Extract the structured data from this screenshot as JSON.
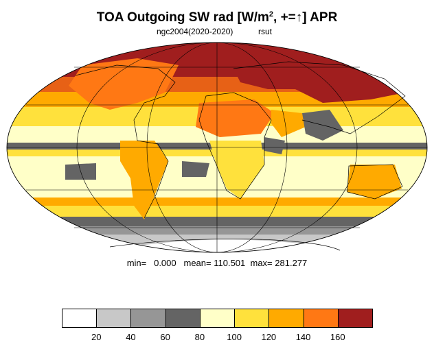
{
  "title": {
    "main": "TOA Outgoing SW rad [W/m",
    "sup": "2",
    "tail": ", +=↑] APR"
  },
  "subtitle": {
    "run": "ngc2004(2020-2020)",
    "variable": "rsut"
  },
  "stats": {
    "min_label": "min=",
    "min_value": "0.000",
    "mean_label": "mean=",
    "mean_value": "110.501",
    "max_label": "max=",
    "max_value": "281.277"
  },
  "colorbar": {
    "levels": [
      "20",
      "40",
      "60",
      "80",
      "100",
      "120",
      "140",
      "160"
    ],
    "colors": [
      "#ffffff",
      "#c8c8c8",
      "#969696",
      "#646464",
      "#ffffc8",
      "#ffe13c",
      "#ffaa00",
      "#ff7814",
      "#a01e1e"
    ]
  },
  "map": {
    "projection": "Mollweide",
    "coastline_color": "#000000",
    "gridline_color": "#000000",
    "colors": {
      "white": "#ffffff",
      "lightgray": "#c8c8c8",
      "midgray": "#969696",
      "darkgray": "#646464",
      "cream": "#ffffc8",
      "yellow": "#ffe13c",
      "orange": "#ffaa00",
      "darkorange": "#ff7814",
      "darkred": "#a01e1e"
    }
  }
}
